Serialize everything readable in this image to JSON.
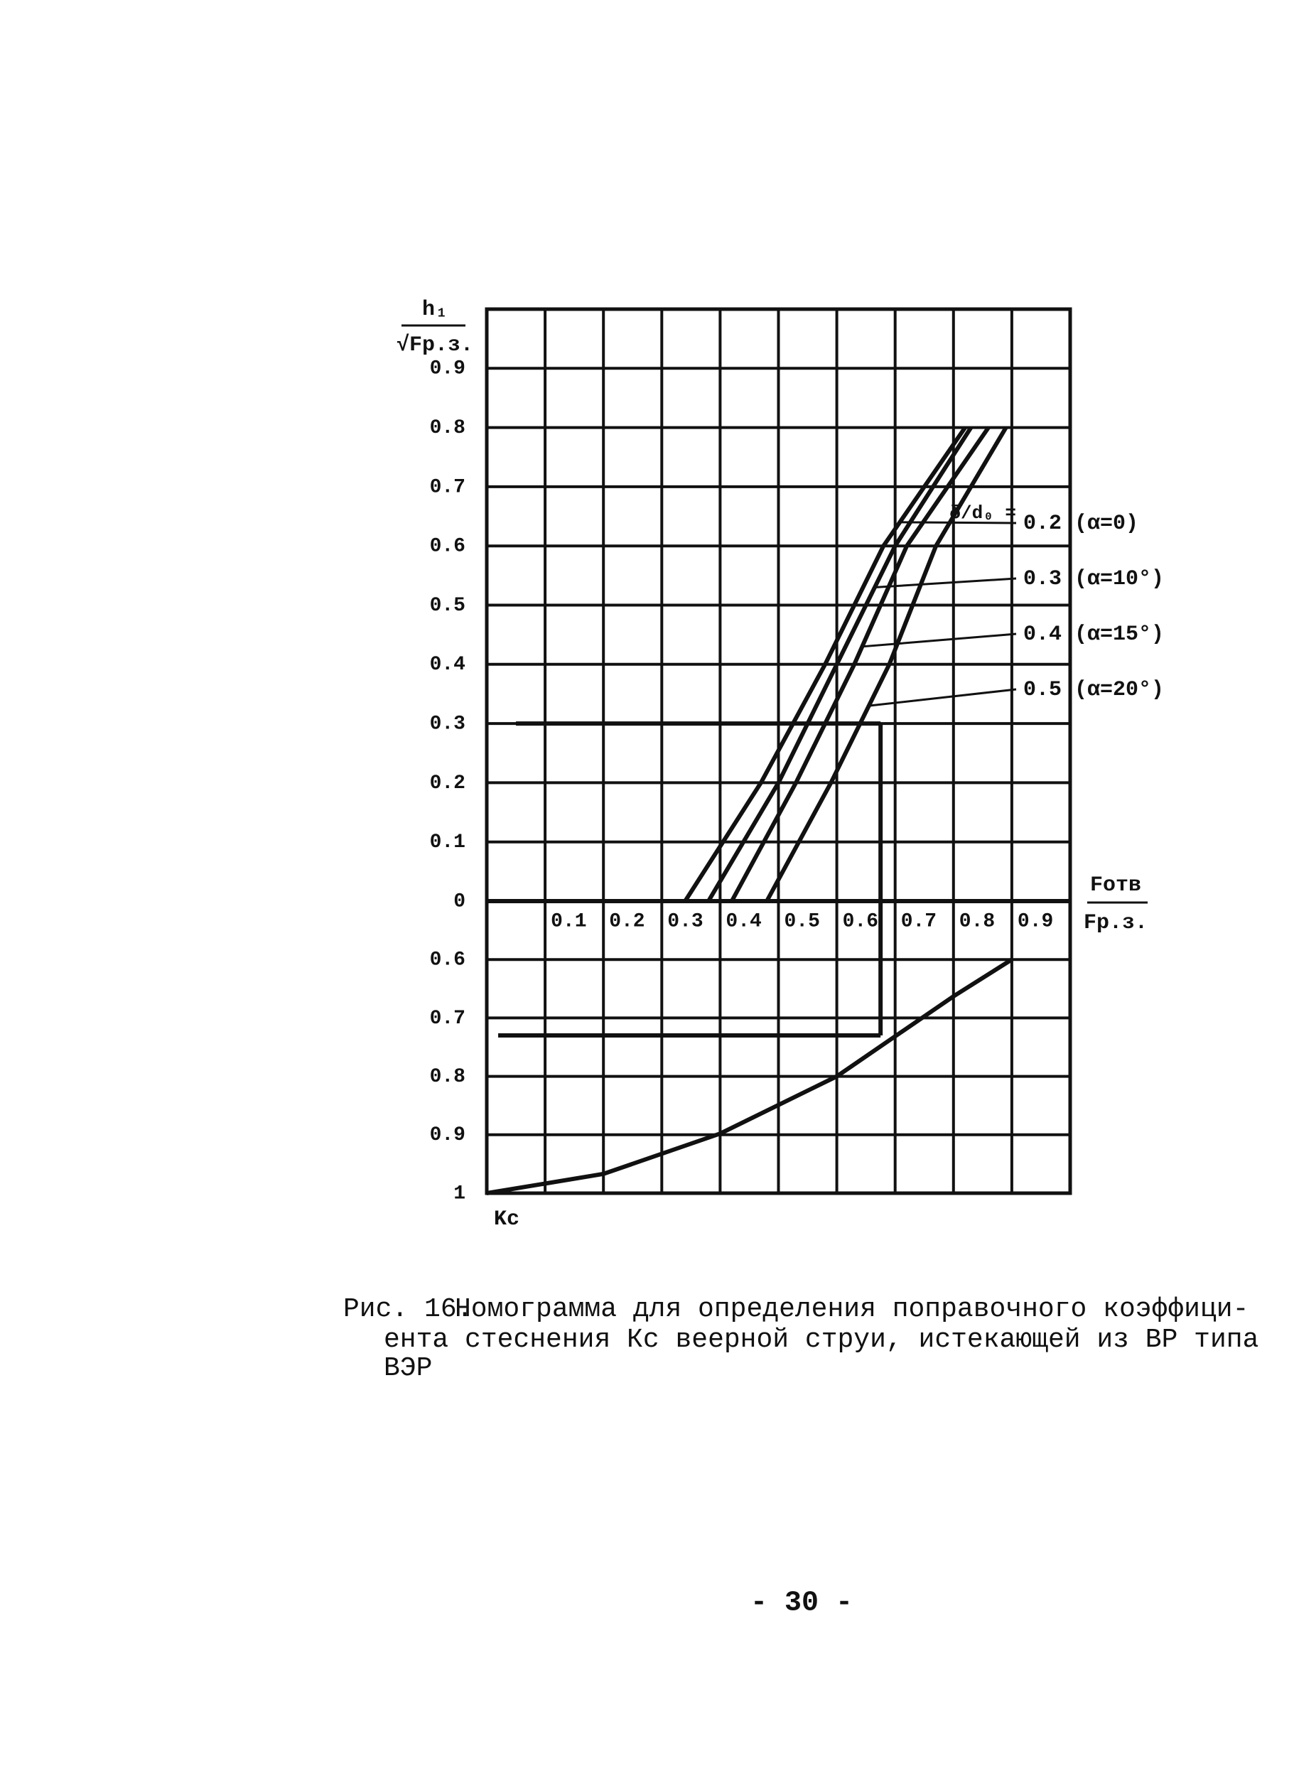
{
  "chart_data": {
    "type": "line",
    "y_label": {
      "numerator": "h₁",
      "denominator": "√Fр.з."
    },
    "x_label": {
      "numerator": "Fотв",
      "denominator": "Fр.з."
    },
    "k_label": "Kc",
    "xlim": [
      0,
      1.0
    ],
    "xticks": [
      0.1,
      0.2,
      0.3,
      0.4,
      0.5,
      0.6,
      0.7,
      0.8,
      0.9
    ],
    "ylim": [
      0,
      1.0
    ],
    "yticks": [
      0,
      0.1,
      0.2,
      0.3,
      0.4,
      0.5,
      0.6,
      0.7,
      0.8,
      0.9
    ],
    "klim": [
      0.5,
      1.0
    ],
    "kticks": [
      0.6,
      0.7,
      0.8,
      0.9,
      1.0
    ],
    "grid": true,
    "legend_title": "δ/d₀ =",
    "series": [
      {
        "name": "0.2 (α=0)",
        "color": "#111",
        "x": [
          0.34,
          0.47,
          0.58,
          0.68,
          0.82
        ],
        "values": [
          0,
          0.2,
          0.4,
          0.6,
          0.8
        ],
        "leader_y": 0.64
      },
      {
        "name": "0.3 (α=10°)",
        "color": "#111",
        "x": [
          0.38,
          0.5,
          0.6,
          0.7,
          0.83
        ],
        "values": [
          0,
          0.2,
          0.4,
          0.6,
          0.8
        ],
        "leader_y": 0.53
      },
      {
        "name": "0.4 (α=15°)",
        "color": "#111",
        "x": [
          0.42,
          0.53,
          0.63,
          0.72,
          0.86
        ],
        "values": [
          0,
          0.2,
          0.4,
          0.6,
          0.8
        ],
        "leader_y": 0.43
      },
      {
        "name": "0.5 (α=20°)",
        "color": "#111",
        "x": [
          0.48,
          0.59,
          0.69,
          0.77,
          0.89
        ],
        "values": [
          0,
          0.2,
          0.4,
          0.6,
          0.8
        ],
        "leader_y": 0.33
      }
    ],
    "kc_curve": {
      "color": "#111",
      "x": [
        0,
        0.2,
        0.4,
        0.6,
        0.8,
        0.9
      ],
      "values": [
        1.0,
        0.967,
        0.898,
        0.8,
        0.663,
        0.6
      ]
    },
    "example": {
      "x_start": 0.05,
      "y": 0.3,
      "x": 0.675,
      "kc": 0.73
    }
  },
  "caption": {
    "label": "Рис. 16.",
    "lines": [
      "Номограмма для определения поправочного коэффици-",
      "ента стеснения Кс веерной струи, истекающей из ВР типа",
      "ВЭР"
    ]
  },
  "page_number": "- 30 -"
}
